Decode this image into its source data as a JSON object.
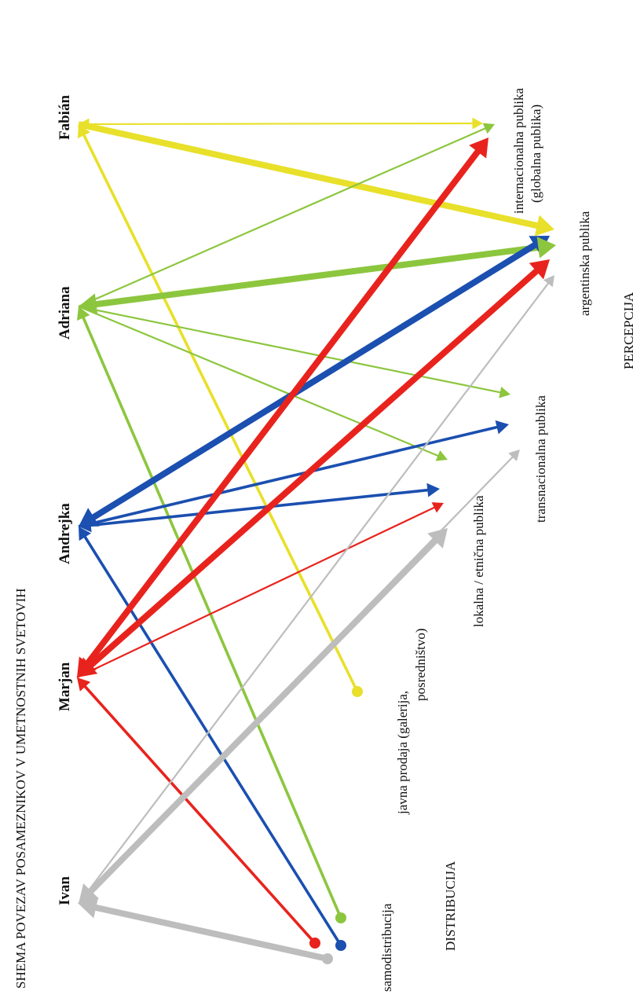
{
  "title": "SHEMA POVEZAV POSAMEZNIKOV V UMETNOSTNIH SVETOVIH",
  "artists": [
    "Ivan",
    "Marjan",
    "Andrejka",
    "Adriana",
    "Fabián"
  ],
  "distribution": {
    "heading": "DISTRIBUCIJA",
    "samodistribucija": "samodistribucija",
    "javna_line1": "javna prodaja (galerija,",
    "javna_line2": "posredništvo)"
  },
  "perception": {
    "heading": "PERCEPCIJA",
    "lokalna": "lokalna / etnična publika",
    "transnacionalna": "transnacionalna publika",
    "argentinska": "argentinska publika",
    "internacionalna_line1": "internacionalna publika",
    "internacionalna_line2": "(globalna publika)"
  },
  "colors": {
    "Ivan": "#bdbdbd",
    "Marjan": "#e8231d",
    "Andrejka": "#1b4fb0",
    "Adriana": "#8cc63e",
    "Fabián": "#e8e02a"
  },
  "connections": [
    {
      "from": "samodistribucija",
      "to": "Ivan",
      "color": "Ivan",
      "weight": "heavy"
    },
    {
      "from": "Ivan",
      "to": "lokalna",
      "color": "Ivan",
      "weight": "heavy",
      "both": true
    },
    {
      "from": "Ivan",
      "to": "transnacionalna",
      "color": "Ivan",
      "weight": "thin"
    },
    {
      "from": "Ivan",
      "to": "argentinska",
      "color": "Ivan",
      "weight": "thin"
    },
    {
      "from": "samodistribucija",
      "to": "Marjan",
      "color": "Marjan",
      "weight": "medium"
    },
    {
      "from": "Marjan",
      "to": "lokalna",
      "color": "Marjan",
      "weight": "thin"
    },
    {
      "from": "Marjan",
      "to": "argentinska",
      "color": "Marjan",
      "weight": "heavy",
      "both": true
    },
    {
      "from": "Marjan",
      "to": "internacionalna",
      "color": "Marjan",
      "weight": "heavy",
      "both": true
    },
    {
      "from": "samodistribucija",
      "to": "Andrejka",
      "color": "Andrejka",
      "weight": "medium"
    },
    {
      "from": "Andrejka",
      "to": "lokalna",
      "color": "Andrejka",
      "weight": "medium",
      "both": true
    },
    {
      "from": "Andrejka",
      "to": "transnacionalna",
      "color": "Andrejka",
      "weight": "medium"
    },
    {
      "from": "Andrejka",
      "to": "argentinska",
      "color": "Andrejka",
      "weight": "heavy",
      "both": true
    },
    {
      "from": "samodistribucija",
      "to": "Adriana",
      "color": "Adriana",
      "weight": "medium"
    },
    {
      "from": "Adriana",
      "to": "lokalna",
      "color": "Adriana",
      "weight": "thin"
    },
    {
      "from": "Adriana",
      "to": "transnacionalna",
      "color": "Adriana",
      "weight": "thin"
    },
    {
      "from": "Adriana",
      "to": "argentinska",
      "color": "Adriana",
      "weight": "heavy",
      "both": true
    },
    {
      "from": "Adriana",
      "to": "internacionalna",
      "color": "Adriana",
      "weight": "thin"
    },
    {
      "from": "javna",
      "to": "Fabián",
      "color": "Fabián",
      "weight": "medium"
    },
    {
      "from": "Fabián",
      "to": "internacionalna",
      "color": "Fabián",
      "weight": "thin",
      "both": true
    },
    {
      "from": "Fabián",
      "to": "argentinska",
      "color": "Fabián",
      "weight": "heavy"
    }
  ]
}
